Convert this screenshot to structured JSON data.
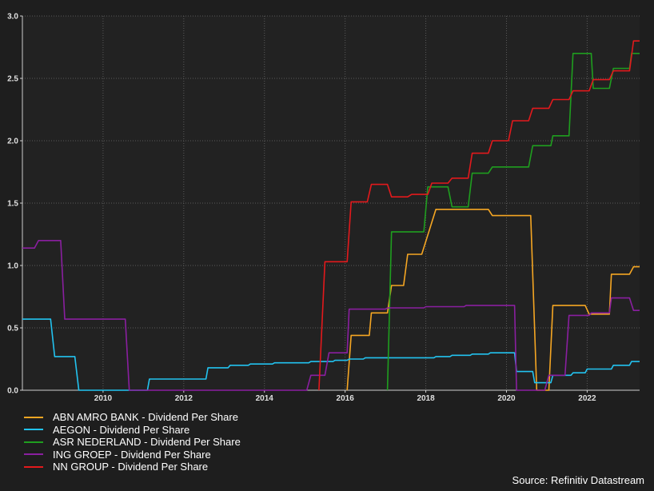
{
  "chart_data": {
    "type": "line",
    "title": "",
    "xlabel": "",
    "ylabel": "",
    "xlim": [
      2008.0,
      2023.3
    ],
    "ylim": [
      0,
      3.0
    ],
    "xticks": [
      2010,
      2012,
      2014,
      2016,
      2018,
      2020,
      2022
    ],
    "xtick_labels": [
      "2010",
      "2012",
      "2014",
      "2016",
      "2018",
      "2020",
      "2022"
    ],
    "yticks": [
      0,
      0.5,
      1.0,
      1.5,
      2.0,
      2.5,
      3.0
    ],
    "ytick_labels": [
      "0.0",
      "0.5",
      "1.0",
      "1.5",
      "2.0",
      "2.5",
      "3.0"
    ],
    "grid": true,
    "legend_position": "bottom-left",
    "series": [
      {
        "name": "ABN AMRO BANK - Dividend Per Share",
        "color": "#f5a623",
        "points": [
          [
            2016.05,
            0
          ],
          [
            2016.15,
            0.44
          ],
          [
            2016.6,
            0.44
          ],
          [
            2016.65,
            0.62
          ],
          [
            2017.05,
            0.62
          ],
          [
            2017.15,
            0.84
          ],
          [
            2017.45,
            0.84
          ],
          [
            2017.55,
            1.09
          ],
          [
            2017.9,
            1.09
          ],
          [
            2018.25,
            1.45
          ],
          [
            2019.55,
            1.45
          ],
          [
            2019.65,
            1.4
          ],
          [
            2020.6,
            1.4
          ],
          [
            2020.75,
            0
          ],
          [
            2021.05,
            0
          ],
          [
            2021.15,
            0.68
          ],
          [
            2021.95,
            0.68
          ],
          [
            2022.05,
            0.61
          ],
          [
            2022.55,
            0.61
          ],
          [
            2022.6,
            0.93
          ],
          [
            2023.05,
            0.93
          ],
          [
            2023.15,
            0.99
          ],
          [
            2023.3,
            0.99
          ]
        ]
      },
      {
        "name": "AEGON - Dividend Per Share",
        "color": "#22c3f0",
        "points": [
          [
            2008.0,
            0.57
          ],
          [
            2008.7,
            0.57
          ],
          [
            2008.8,
            0.27
          ],
          [
            2009.3,
            0.27
          ],
          [
            2009.4,
            0
          ],
          [
            2011.1,
            0
          ],
          [
            2011.15,
            0.09
          ],
          [
            2012.55,
            0.09
          ],
          [
            2012.6,
            0.18
          ],
          [
            2013.1,
            0.18
          ],
          [
            2013.15,
            0.2
          ],
          [
            2013.6,
            0.2
          ],
          [
            2013.65,
            0.21
          ],
          [
            2014.2,
            0.21
          ],
          [
            2014.25,
            0.22
          ],
          [
            2015.1,
            0.22
          ],
          [
            2015.15,
            0.23
          ],
          [
            2015.7,
            0.23
          ],
          [
            2015.75,
            0.24
          ],
          [
            2016.05,
            0.24
          ],
          [
            2016.1,
            0.25
          ],
          [
            2016.45,
            0.25
          ],
          [
            2016.5,
            0.26
          ],
          [
            2018.2,
            0.26
          ],
          [
            2018.25,
            0.27
          ],
          [
            2018.6,
            0.27
          ],
          [
            2018.65,
            0.28
          ],
          [
            2019.1,
            0.28
          ],
          [
            2019.15,
            0.29
          ],
          [
            2019.55,
            0.29
          ],
          [
            2019.6,
            0.3
          ],
          [
            2020.2,
            0.3
          ],
          [
            2020.25,
            0.15
          ],
          [
            2020.65,
            0.15
          ],
          [
            2020.7,
            0.06
          ],
          [
            2021.1,
            0.06
          ],
          [
            2021.15,
            0.12
          ],
          [
            2021.6,
            0.12
          ],
          [
            2021.65,
            0.14
          ],
          [
            2021.95,
            0.14
          ],
          [
            2022.0,
            0.17
          ],
          [
            2022.6,
            0.17
          ],
          [
            2022.65,
            0.2
          ],
          [
            2023.05,
            0.2
          ],
          [
            2023.1,
            0.23
          ],
          [
            2023.3,
            0.23
          ]
        ]
      },
      {
        "name": "ASR NEDERLAND - Dividend Per Share",
        "color": "#1f9e1f",
        "points": [
          [
            2017.05,
            0
          ],
          [
            2017.15,
            1.27
          ],
          [
            2017.95,
            1.27
          ],
          [
            2018.05,
            1.63
          ],
          [
            2018.55,
            1.63
          ],
          [
            2018.65,
            1.47
          ],
          [
            2019.05,
            1.47
          ],
          [
            2019.15,
            1.74
          ],
          [
            2019.55,
            1.74
          ],
          [
            2019.65,
            1.79
          ],
          [
            2020.55,
            1.79
          ],
          [
            2020.65,
            1.96
          ],
          [
            2021.1,
            1.96
          ],
          [
            2021.15,
            2.04
          ],
          [
            2021.55,
            2.04
          ],
          [
            2021.65,
            2.7
          ],
          [
            2022.1,
            2.7
          ],
          [
            2022.15,
            2.42
          ],
          [
            2022.55,
            2.42
          ],
          [
            2022.65,
            2.58
          ],
          [
            2023.05,
            2.58
          ],
          [
            2023.1,
            2.7
          ],
          [
            2023.3,
            2.7
          ]
        ]
      },
      {
        "name": "ING GROEP - Dividend Per Share",
        "color": "#8a1fa0",
        "points": [
          [
            2008.0,
            1.14
          ],
          [
            2008.3,
            1.14
          ],
          [
            2008.4,
            1.2
          ],
          [
            2008.95,
            1.2
          ],
          [
            2009.05,
            0.57
          ],
          [
            2010.55,
            0.57
          ],
          [
            2010.65,
            0
          ],
          [
            2015.05,
            0
          ],
          [
            2015.15,
            0.12
          ],
          [
            2015.5,
            0.12
          ],
          [
            2015.6,
            0.3
          ],
          [
            2016.05,
            0.3
          ],
          [
            2016.1,
            0.65
          ],
          [
            2017.0,
            0.65
          ],
          [
            2017.05,
            0.66
          ],
          [
            2017.95,
            0.66
          ],
          [
            2018.0,
            0.67
          ],
          [
            2018.95,
            0.67
          ],
          [
            2019.0,
            0.68
          ],
          [
            2020.2,
            0.68
          ],
          [
            2020.25,
            0
          ],
          [
            2020.95,
            0
          ],
          [
            2021.05,
            0.12
          ],
          [
            2021.45,
            0.12
          ],
          [
            2021.55,
            0.6
          ],
          [
            2022.05,
            0.6
          ],
          [
            2022.1,
            0.62
          ],
          [
            2022.55,
            0.62
          ],
          [
            2022.6,
            0.74
          ],
          [
            2023.05,
            0.74
          ],
          [
            2023.15,
            0.64
          ],
          [
            2023.3,
            0.64
          ]
        ]
      },
      {
        "name": "NN GROUP - Dividend Per Share",
        "color": "#e3191c",
        "points": [
          [
            2015.35,
            0
          ],
          [
            2015.5,
            1.03
          ],
          [
            2016.05,
            1.03
          ],
          [
            2016.15,
            1.51
          ],
          [
            2016.55,
            1.51
          ],
          [
            2016.65,
            1.65
          ],
          [
            2017.05,
            1.65
          ],
          [
            2017.15,
            1.55
          ],
          [
            2017.55,
            1.55
          ],
          [
            2017.65,
            1.57
          ],
          [
            2018.05,
            1.57
          ],
          [
            2018.15,
            1.66
          ],
          [
            2018.55,
            1.66
          ],
          [
            2018.65,
            1.7
          ],
          [
            2019.05,
            1.7
          ],
          [
            2019.15,
            1.9
          ],
          [
            2019.55,
            1.9
          ],
          [
            2019.65,
            2.0
          ],
          [
            2020.05,
            2.0
          ],
          [
            2020.15,
            2.16
          ],
          [
            2020.55,
            2.16
          ],
          [
            2020.65,
            2.26
          ],
          [
            2021.05,
            2.26
          ],
          [
            2021.15,
            2.33
          ],
          [
            2021.55,
            2.33
          ],
          [
            2021.65,
            2.4
          ],
          [
            2022.05,
            2.4
          ],
          [
            2022.15,
            2.49
          ],
          [
            2022.55,
            2.49
          ],
          [
            2022.65,
            2.56
          ],
          [
            2023.05,
            2.56
          ],
          [
            2023.15,
            2.8
          ],
          [
            2023.3,
            2.8
          ]
        ]
      }
    ]
  },
  "source_text": "Source: Refinitiv Datastream"
}
